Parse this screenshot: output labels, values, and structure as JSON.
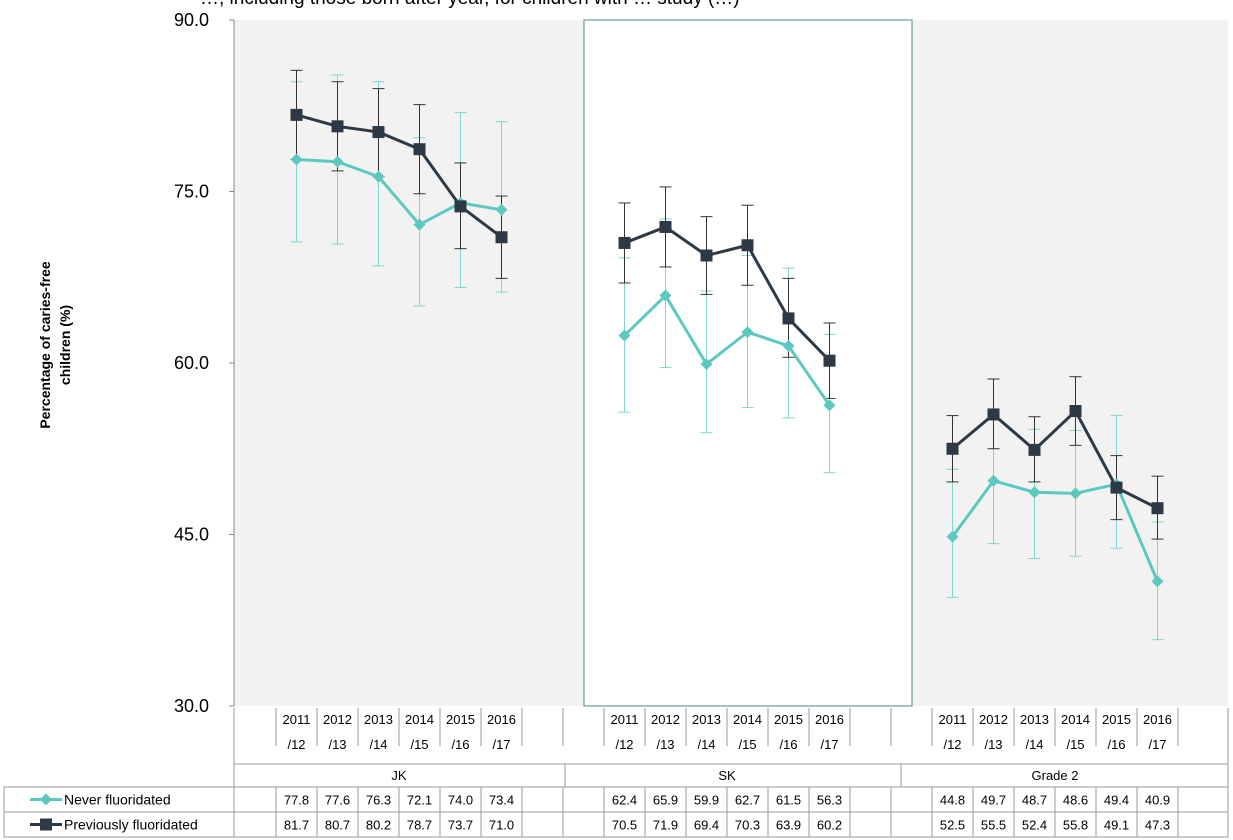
{
  "chart_data": {
    "type": "line",
    "title": "…, including those born after year, for children with … study (…)",
    "ylabel": "Percentage of caries-free children (%)",
    "ylim": [
      30,
      90
    ],
    "yticks": [
      "30.0",
      "45.0",
      "60.0",
      "75.0",
      "90.0"
    ],
    "ytick_values": [
      30,
      45,
      60,
      75,
      90
    ],
    "grid": false,
    "highlight_group": "SK",
    "groups": [
      {
        "name": "JK",
        "categories": [
          "2011/12",
          "2012/13",
          "2013/14",
          "2014/15",
          "2015/16",
          "2016/17"
        ]
      },
      {
        "name": "SK",
        "categories": [
          "2011/12",
          "2012/13",
          "2013/14",
          "2014/15",
          "2015/16",
          "2016/17"
        ]
      },
      {
        "name": "Grade 2",
        "categories": [
          "2011/12",
          "2012/13",
          "2013/14",
          "2014/15",
          "2015/16",
          "2016/17"
        ]
      }
    ],
    "series": [
      {
        "name": "Never fluoridated",
        "color": "#5cc8c0",
        "marker": "diamond",
        "values": [
          [
            77.8,
            77.6,
            76.3,
            72.1,
            74.0,
            73.4
          ],
          [
            62.4,
            65.9,
            59.9,
            62.7,
            61.5,
            56.3
          ],
          [
            44.8,
            49.7,
            48.7,
            48.6,
            49.4,
            40.9
          ]
        ],
        "labels": [
          [
            "77.8",
            "77.6",
            "76.3",
            "72.1",
            "74.0",
            "73.4"
          ],
          [
            "62.4",
            "65.9",
            "59.9",
            "62.7",
            "61.5",
            "56.3"
          ],
          [
            "44.8",
            "49.7",
            "48.7",
            "48.6",
            "49.4",
            "40.9"
          ]
        ],
        "err_low": [
          [
            70.6,
            70.4,
            68.5,
            65.0,
            66.6,
            66.2
          ],
          [
            55.7,
            59.6,
            53.9,
            56.1,
            55.2,
            50.4
          ],
          [
            39.5,
            44.2,
            42.9,
            43.1,
            43.8,
            35.8
          ]
        ],
        "err_high": [
          [
            84.6,
            85.2,
            84.6,
            79.7,
            81.9,
            81.1
          ],
          [
            69.2,
            72.6,
            66.3,
            69.4,
            68.3,
            62.5
          ],
          [
            50.7,
            55.1,
            54.2,
            54.1,
            55.4,
            46.1
          ]
        ]
      },
      {
        "name": "Previously fluoridated",
        "color": "#2d3a46",
        "marker": "square",
        "values": [
          [
            81.7,
            80.7,
            80.2,
            78.7,
            73.7,
            71.0
          ],
          [
            70.5,
            71.9,
            69.4,
            70.3,
            63.9,
            60.2
          ],
          [
            52.5,
            55.5,
            52.4,
            55.8,
            49.1,
            47.3
          ]
        ],
        "labels": [
          [
            "81.7",
            "80.7",
            "80.2",
            "78.7",
            "73.7",
            "71.0"
          ],
          [
            "70.5",
            "71.9",
            "69.4",
            "70.3",
            "63.9",
            "60.2"
          ],
          [
            "52.5",
            "55.5",
            "52.4",
            "55.8",
            "49.1",
            "47.3"
          ]
        ],
        "err_low": [
          [
            77.8,
            76.8,
            76.3,
            74.8,
            70.0,
            67.4
          ],
          [
            67.0,
            68.4,
            66.0,
            66.8,
            60.5,
            56.9
          ],
          [
            49.6,
            52.5,
            49.6,
            52.8,
            46.3,
            44.6
          ]
        ],
        "err_high": [
          [
            85.6,
            84.6,
            84.0,
            82.6,
            77.5,
            74.6
          ],
          [
            74.0,
            75.4,
            72.8,
            73.8,
            67.4,
            63.5
          ],
          [
            55.4,
            58.6,
            55.3,
            58.8,
            51.9,
            50.1
          ]
        ]
      }
    ]
  }
}
